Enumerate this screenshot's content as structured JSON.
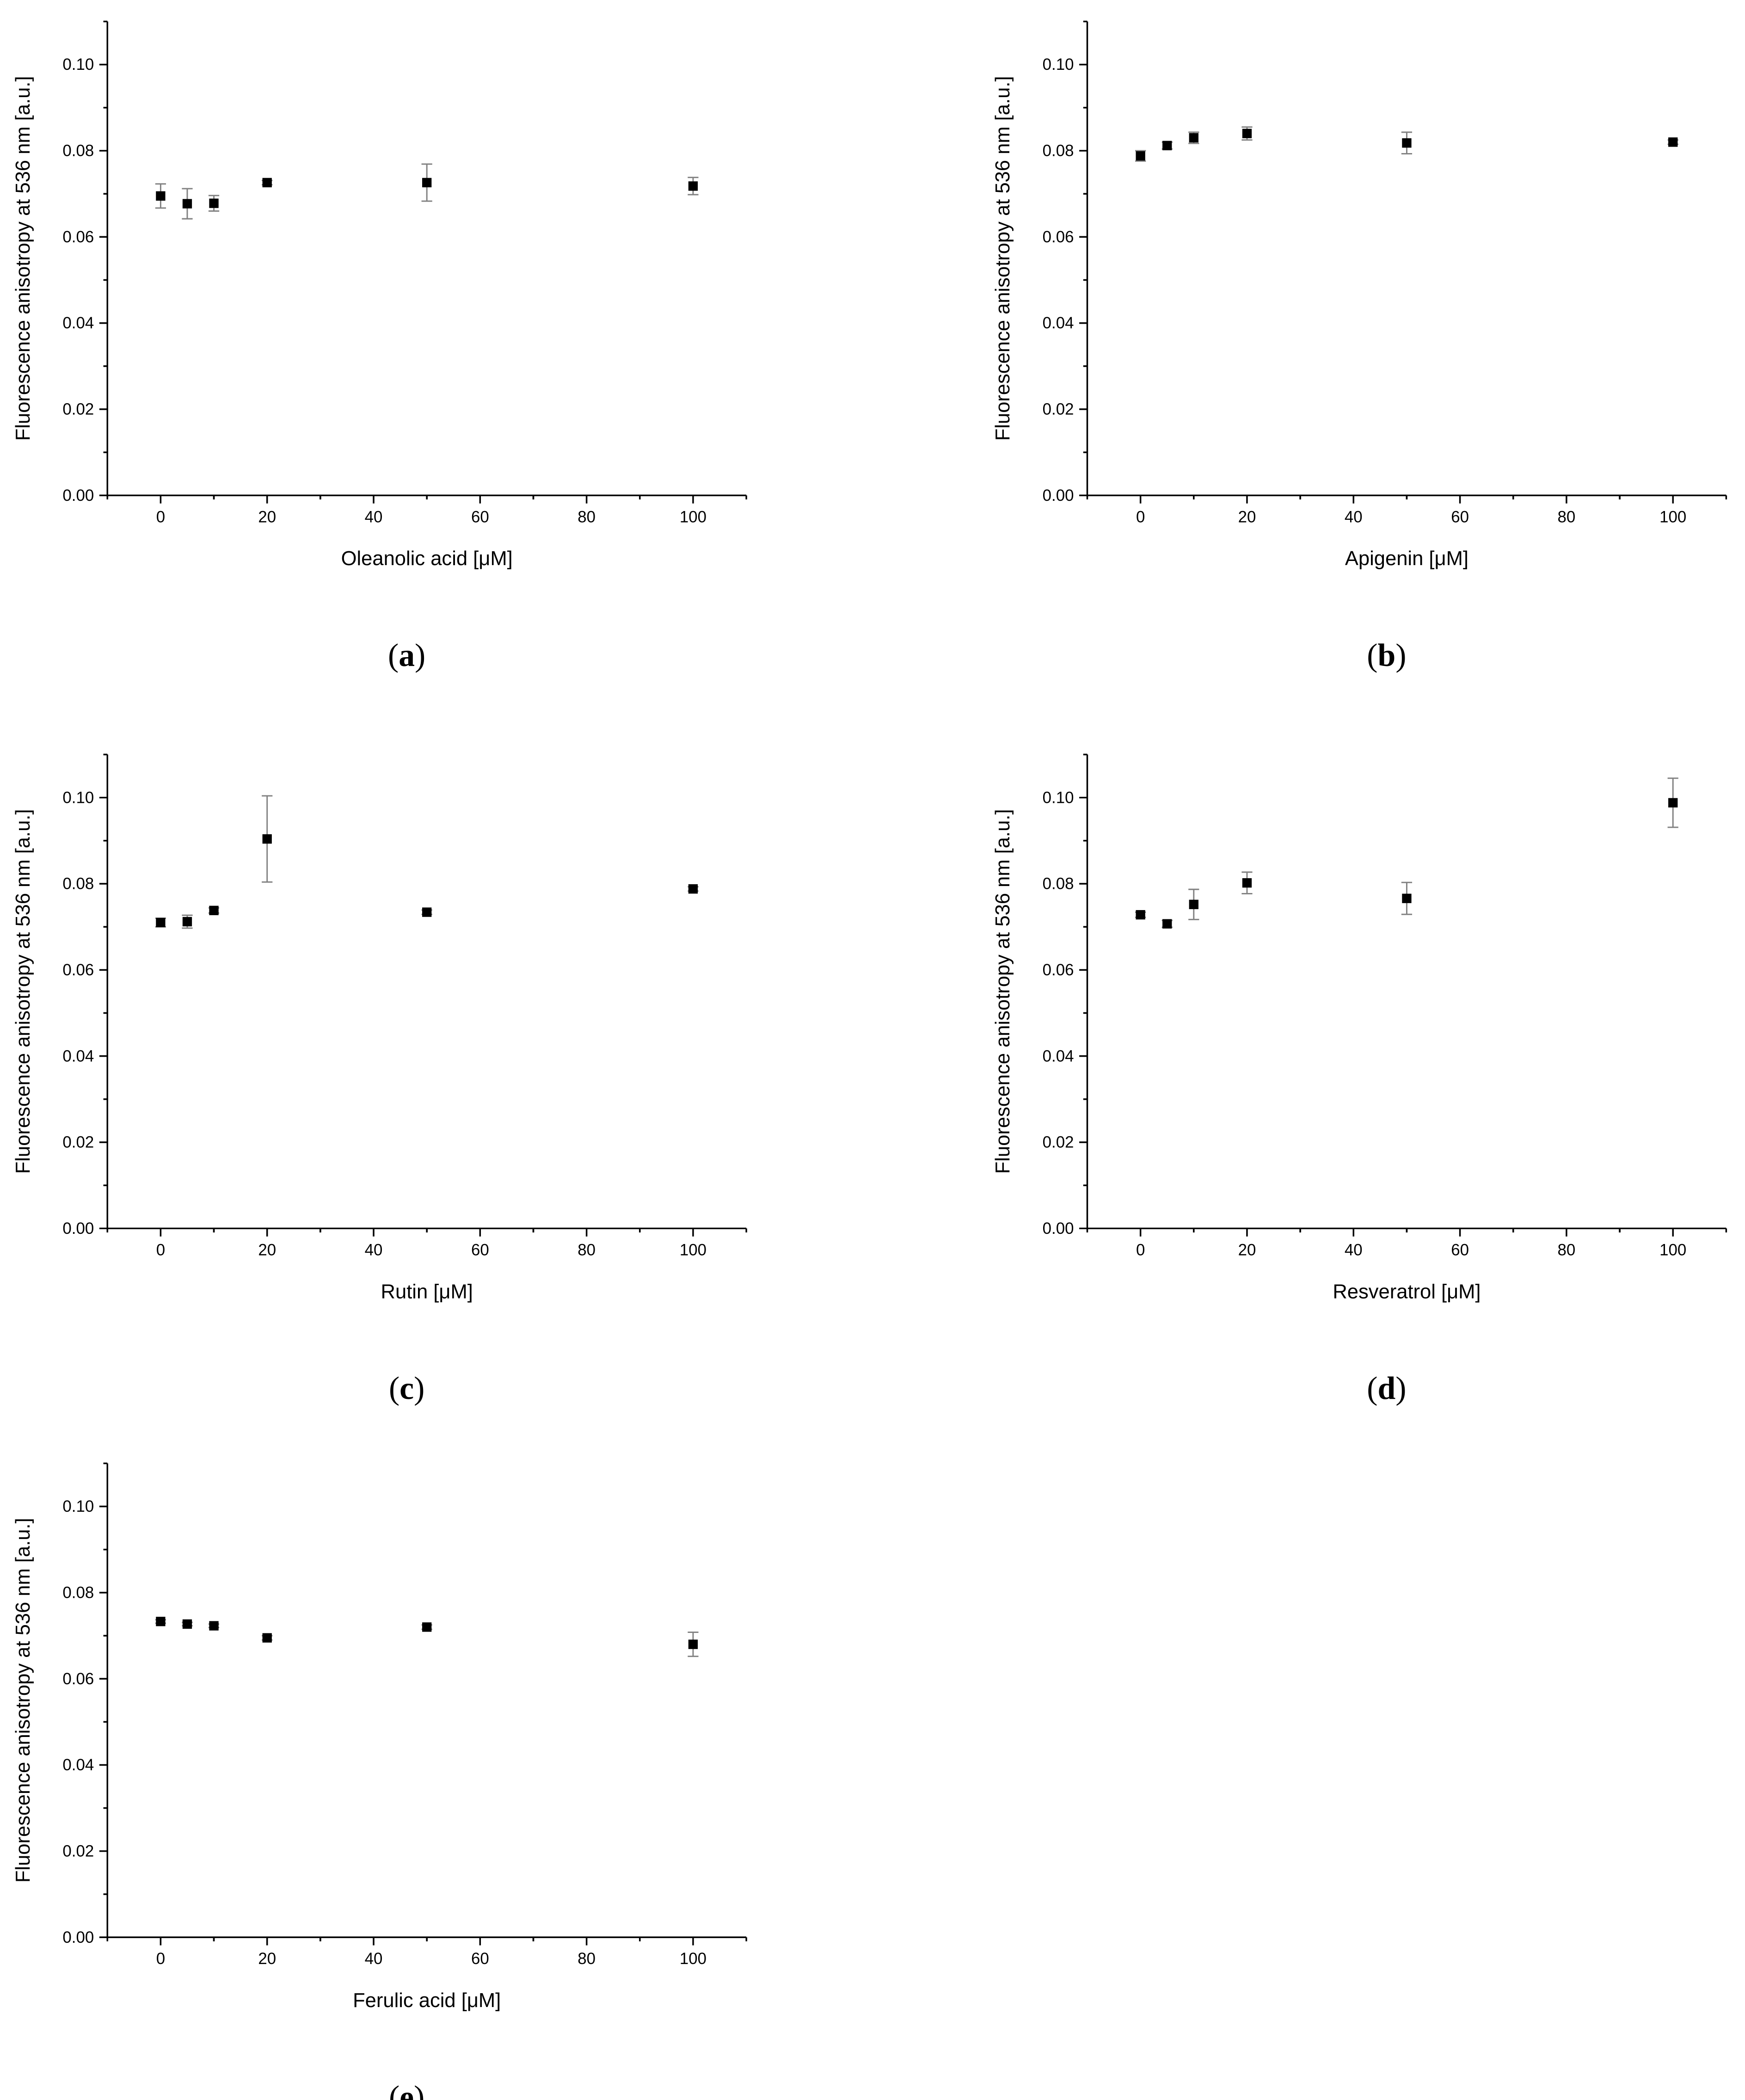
{
  "chart_data": [
    {
      "type": "scatter",
      "xlabel": "Oleanolic acid [μM]",
      "ylabel": "Fluorescence anisotropy at 536 nm [a.u.]",
      "caption": "(a)",
      "x": [
        0,
        5,
        10,
        20,
        50,
        100
      ],
      "values": [
        0.0695,
        0.0677,
        0.0678,
        0.0726,
        0.0726,
        0.0718
      ],
      "errors": [
        0.0028,
        0.0035,
        0.0018,
        0.0005,
        0.0043,
        0.002
      ],
      "color": "#000000",
      "error_color": "#808080",
      "xlim": [
        -10,
        110
      ],
      "xticks": [
        0,
        20,
        40,
        60,
        80,
        100
      ],
      "ylim": [
        0,
        0.11
      ],
      "yticks": [
        {
          "value": 0,
          "label": "0.00"
        },
        0.02,
        0.04,
        0.06,
        0.08,
        {
          "value": 0.1,
          "label": "0.10"
        }
      ]
    },
    {
      "type": "scatter",
      "xlabel": "Apigenin [μM]",
      "ylabel": "Fluorescence anisotropy at 536 nm [a.u.]",
      "caption": "(b)",
      "x": [
        0,
        5,
        10,
        20,
        50,
        100
      ],
      "values": [
        0.0788,
        0.0812,
        0.083,
        0.084,
        0.0818,
        0.082
      ],
      "errors": [
        0.0012,
        0.0008,
        0.0013,
        0.0015,
        0.0025,
        0.0005
      ],
      "color": "#000000",
      "error_color": "#808080",
      "xlim": [
        -10,
        110
      ],
      "xticks": [
        0,
        20,
        40,
        60,
        80,
        100
      ],
      "ylim": [
        0,
        0.11
      ],
      "yticks": [
        {
          "value": 0,
          "label": "0.00"
        },
        0.02,
        0.04,
        0.06,
        0.08,
        {
          "value": 0.1,
          "label": "0.10"
        }
      ]
    },
    {
      "type": "scatter",
      "xlabel": "Rutin [μM]",
      "ylabel": "Fluorescence anisotropy at 536 nm [a.u.]",
      "caption": "(c)",
      "x": [
        0,
        5,
        10,
        20,
        50,
        100
      ],
      "values": [
        0.071,
        0.0712,
        0.0738,
        0.0904,
        0.0734,
        0.0788
      ],
      "errors": [
        0.001,
        0.0015,
        0.0006,
        0.01,
        0.0005,
        0.0005
      ],
      "color": "#000000",
      "error_color": "#808080",
      "xlim": [
        -10,
        110
      ],
      "xticks": [
        0,
        20,
        40,
        60,
        80,
        100
      ],
      "ylim": [
        0,
        0.11
      ],
      "yticks": [
        {
          "value": 0,
          "label": "0.00"
        },
        0.02,
        0.04,
        0.06,
        0.08,
        {
          "value": 0.1,
          "label": "0.10"
        }
      ]
    },
    {
      "type": "scatter",
      "xlabel": "Resveratrol [μM]",
      "ylabel": "Fluorescence anisotropy at 536 nm [a.u.]",
      "caption": "(d)",
      "x": [
        0,
        5,
        10,
        20,
        50,
        100
      ],
      "values": [
        0.0728,
        0.0707,
        0.0752,
        0.0802,
        0.0766,
        0.0988
      ],
      "errors": [
        0.0006,
        0.0008,
        0.0035,
        0.0025,
        0.0037,
        0.0057
      ],
      "color": "#000000",
      "error_color": "#808080",
      "xlim": [
        -10,
        110
      ],
      "xticks": [
        0,
        20,
        40,
        60,
        80,
        100
      ],
      "ylim": [
        0,
        0.11
      ],
      "yticks": [
        {
          "value": 0,
          "label": "0.00"
        },
        0.02,
        0.04,
        0.06,
        0.08,
        {
          "value": 0.1,
          "label": "0.10"
        }
      ]
    },
    {
      "type": "scatter",
      "xlabel": "Ferulic acid [μM]",
      "ylabel": "Fluorescence anisotropy at 536 nm [a.u.]",
      "caption": "(e)",
      "x": [
        0,
        5,
        10,
        20,
        50,
        100
      ],
      "values": [
        0.0733,
        0.0727,
        0.0723,
        0.0695,
        0.072,
        0.068
      ],
      "errors": [
        0.0004,
        0.0004,
        0.0004,
        0.0005,
        0.0005,
        0.0028
      ],
      "color": "#000000",
      "error_color": "#808080",
      "xlim": [
        -10,
        110
      ],
      "xticks": [
        0,
        20,
        40,
        60,
        80,
        100
      ],
      "ylim": [
        0,
        0.11
      ],
      "yticks": [
        {
          "value": 0,
          "label": "0.00"
        },
        0.02,
        0.04,
        0.06,
        0.08,
        {
          "value": 0.1,
          "label": "0.10"
        }
      ]
    }
  ]
}
